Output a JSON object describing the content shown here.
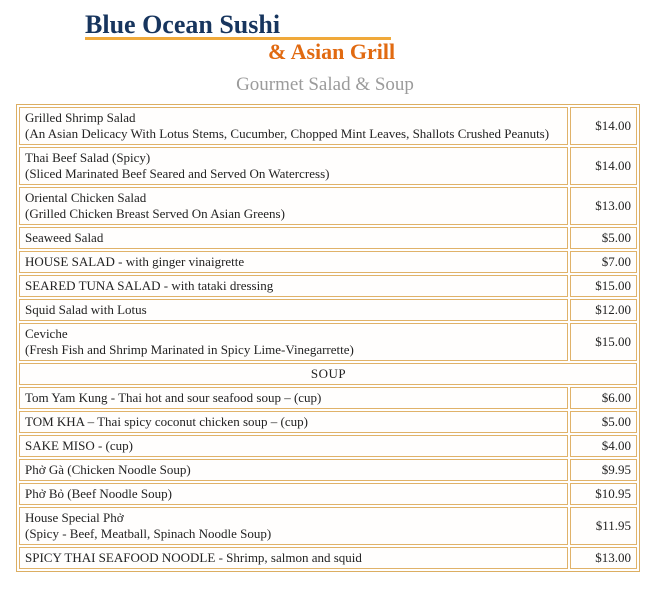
{
  "header": {
    "title": "Blue Ocean Sushi",
    "subtitle": "& Asian Grill"
  },
  "section_title": "Gourmet Salad & Soup",
  "colors": {
    "logo_navy": "#17355e",
    "logo_orange": "#e16a11",
    "logo_gold_underline": "#f0a93a",
    "section_title_gray": "#9b9b9b",
    "table_border_tan": "#e0b269"
  },
  "menu": {
    "rows": [
      {
        "type": "item",
        "name": "Grilled Shrimp Salad",
        "desc": "(An Asian Delicacy With Lotus Stems, Cucumber, Chopped Mint Leaves, Shallots Crushed Peanuts)",
        "price": "$14.00"
      },
      {
        "type": "item",
        "name": "Thai Beef Salad (Spicy)",
        "desc": "(Sliced Marinated Beef Seared and Served On Watercress)",
        "price": "$14.00"
      },
      {
        "type": "item",
        "name": "Oriental Chicken Salad",
        "desc": "(Grilled Chicken Breast Served On Asian Greens)",
        "price": "$13.00"
      },
      {
        "type": "item",
        "name": "Seaweed Salad",
        "desc": "",
        "price": "$5.00"
      },
      {
        "type": "item",
        "name": "HOUSE SALAD - with ginger vinaigrette",
        "desc": "",
        "price": "$7.00"
      },
      {
        "type": "item",
        "name": "SEARED TUNA SALAD - with tataki dressing",
        "desc": "",
        "price": "$15.00"
      },
      {
        "type": "item",
        "name": "Squid Salad with Lotus",
        "desc": "",
        "price": "$12.00"
      },
      {
        "type": "item",
        "name": "Ceviche",
        "desc": "(Fresh Fish and Shrimp Marinated in Spicy Lime-Vinegarrette)",
        "price": "$15.00"
      },
      {
        "type": "section",
        "label": "SOUP"
      },
      {
        "type": "item",
        "name": "Tom Yam Kung - Thai hot and sour seafood soup – (cup)",
        "desc": "",
        "price": "$6.00"
      },
      {
        "type": "item",
        "name": "TOM KHA – Thai spicy coconut chicken soup – (cup)",
        "desc": "",
        "price": "$5.00"
      },
      {
        "type": "item",
        "name": "SAKE MISO - (cup)",
        "desc": "",
        "price": "$4.00"
      },
      {
        "type": "item",
        "name": "Phở Gà (Chicken Noodle Soup)",
        "desc": "",
        "price": "$9.95"
      },
      {
        "type": "item",
        "name": "Phở Bỏ (Beef Noodle Soup)",
        "desc": "",
        "price": "$10.95"
      },
      {
        "type": "item",
        "name": "House Special Phở",
        "desc": "(Spicy - Beef, Meatball, Spinach Noodle Soup)",
        "price": "$11.95"
      },
      {
        "type": "item",
        "name": "SPICY THAI SEAFOOD NOODLE - Shrimp, salmon and squid",
        "desc": "",
        "price": "$13.00"
      }
    ]
  }
}
